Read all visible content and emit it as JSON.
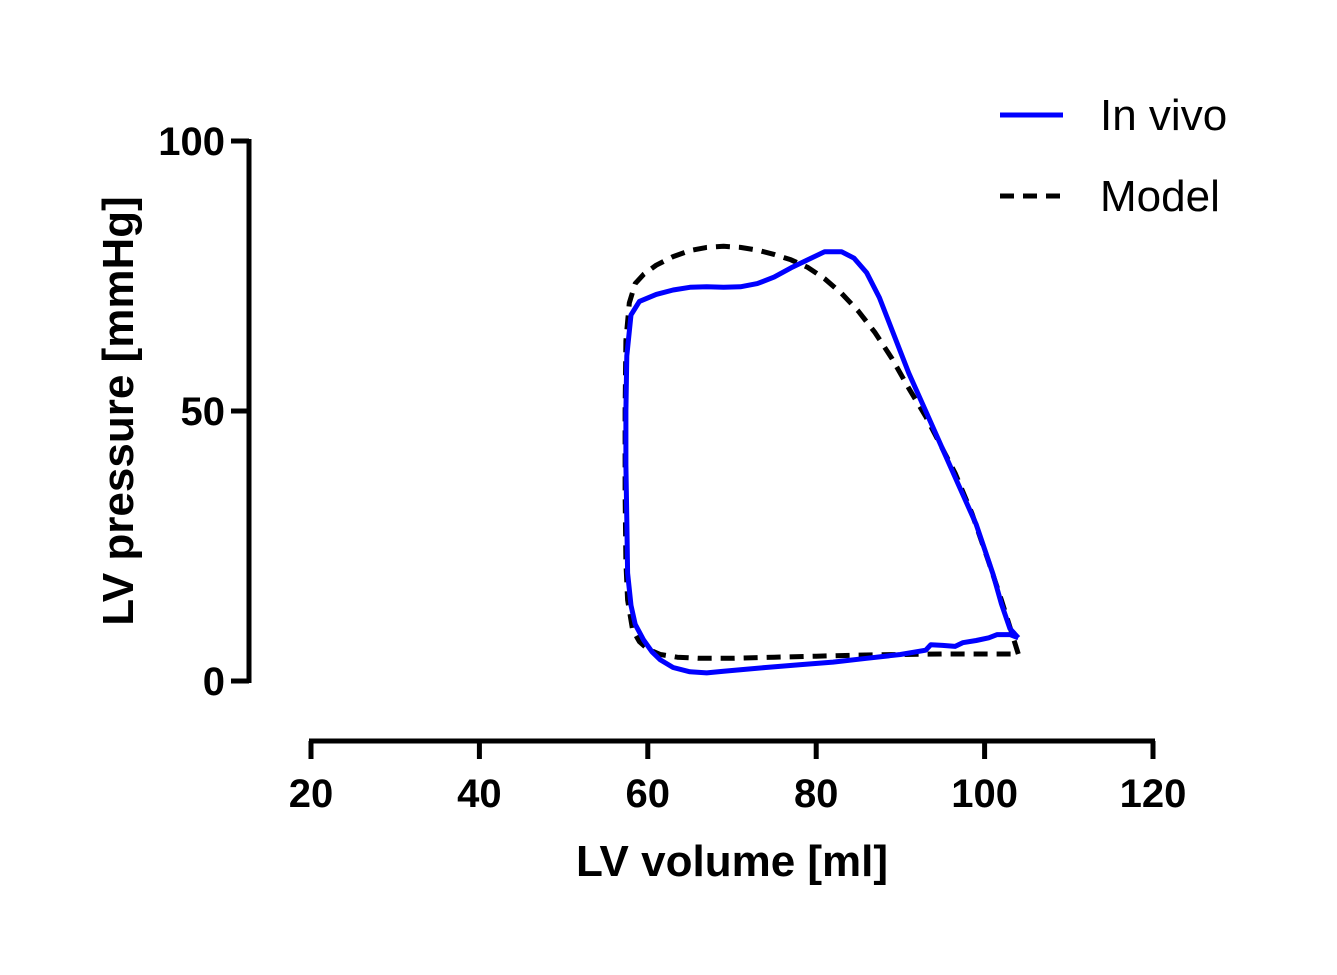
{
  "chart_data": {
    "type": "line",
    "title": "",
    "xlabel": "LV volume [ml]",
    "ylabel": "LV pressure [mmHg]",
    "xlim": [
      20,
      120
    ],
    "ylim": [
      0,
      100
    ],
    "x_ticks": [
      20,
      40,
      60,
      80,
      100,
      120
    ],
    "y_ticks": [
      0,
      50,
      100
    ],
    "grid": false,
    "legend_position": "top-right",
    "series": [
      {
        "name": "In vivo",
        "color": "#0000ff",
        "style": "solid",
        "points": [
          [
            104,
            8.0
          ],
          [
            103,
            9.7
          ],
          [
            102,
            14.3
          ],
          [
            101,
            19.8
          ],
          [
            100,
            24.4
          ],
          [
            99,
            29.0
          ],
          [
            97,
            36.0
          ],
          [
            95,
            43.0
          ],
          [
            93,
            50.0
          ],
          [
            91,
            57.0
          ],
          [
            89,
            65.0
          ],
          [
            87.5,
            71.0
          ],
          [
            86,
            75.6
          ],
          [
            84.5,
            78.3
          ],
          [
            83,
            79.5
          ],
          [
            81,
            79.5
          ],
          [
            79,
            78.0
          ],
          [
            77,
            76.5
          ],
          [
            75,
            74.8
          ],
          [
            73,
            73.6
          ],
          [
            71,
            73.0
          ],
          [
            69,
            72.9
          ],
          [
            67,
            73.0
          ],
          [
            65,
            72.9
          ],
          [
            63,
            72.4
          ],
          [
            61,
            71.6
          ],
          [
            59,
            70.3
          ],
          [
            58,
            67.8
          ],
          [
            57.5,
            60.2
          ],
          [
            57.4,
            50.0
          ],
          [
            57.4,
            40.0
          ],
          [
            57.5,
            30.0
          ],
          [
            57.6,
            20.0
          ],
          [
            58.0,
            14.0
          ],
          [
            58.5,
            10.5
          ],
          [
            59.5,
            7.6
          ],
          [
            60.5,
            5.4
          ],
          [
            61.5,
            3.9
          ],
          [
            63,
            2.5
          ],
          [
            65,
            1.7
          ],
          [
            67,
            1.5
          ],
          [
            69,
            1.8
          ],
          [
            71,
            2.1
          ],
          [
            74,
            2.5
          ],
          [
            78,
            3.0
          ],
          [
            82,
            3.5
          ],
          [
            86,
            4.2
          ],
          [
            90,
            4.9
          ],
          [
            93,
            5.7
          ],
          [
            93.6,
            6.7
          ],
          [
            95,
            6.6
          ],
          [
            96.5,
            6.4
          ],
          [
            97.4,
            7.1
          ],
          [
            99,
            7.5
          ],
          [
            100.5,
            8.0
          ],
          [
            101.5,
            8.6
          ],
          [
            103,
            8.6
          ],
          [
            104,
            8.0
          ]
        ]
      },
      {
        "name": "Model",
        "color": "#000000",
        "style": "dashed",
        "points": [
          [
            104,
            5.0
          ],
          [
            103.5,
            7.5
          ],
          [
            103,
            10.0
          ],
          [
            102,
            15.0
          ],
          [
            100.5,
            22.0
          ],
          [
            98.5,
            31.0
          ],
          [
            96.5,
            38.5
          ],
          [
            94.5,
            44.5
          ],
          [
            93,
            49.0
          ],
          [
            91,
            54.2
          ],
          [
            89,
            59.7
          ],
          [
            87,
            64.5
          ],
          [
            85,
            68.5
          ],
          [
            83,
            71.8
          ],
          [
            81,
            74.5
          ],
          [
            79,
            76.6
          ],
          [
            77,
            78.0
          ],
          [
            75,
            79.0
          ],
          [
            73,
            79.8
          ],
          [
            71,
            80.3
          ],
          [
            69,
            80.5
          ],
          [
            67,
            80.3
          ],
          [
            65,
            79.7
          ],
          [
            63,
            78.6
          ],
          [
            61,
            77.0
          ],
          [
            59.5,
            75.3
          ],
          [
            58.5,
            73.6
          ],
          [
            57.8,
            70.0
          ],
          [
            57.4,
            63.0
          ],
          [
            57.3,
            50.0
          ],
          [
            57.3,
            35.0
          ],
          [
            57.4,
            22.0
          ],
          [
            57.6,
            15.0
          ],
          [
            58.2,
            9.5
          ],
          [
            59.0,
            7.3
          ],
          [
            60.0,
            5.9
          ],
          [
            61.5,
            4.9
          ],
          [
            63.5,
            4.4
          ],
          [
            66,
            4.2
          ],
          [
            70,
            4.2
          ],
          [
            75,
            4.4
          ],
          [
            80,
            4.6
          ],
          [
            85,
            4.8
          ],
          [
            90,
            4.9
          ],
          [
            95,
            5.0
          ],
          [
            100,
            5.0
          ],
          [
            104,
            5.0
          ]
        ]
      }
    ]
  }
}
